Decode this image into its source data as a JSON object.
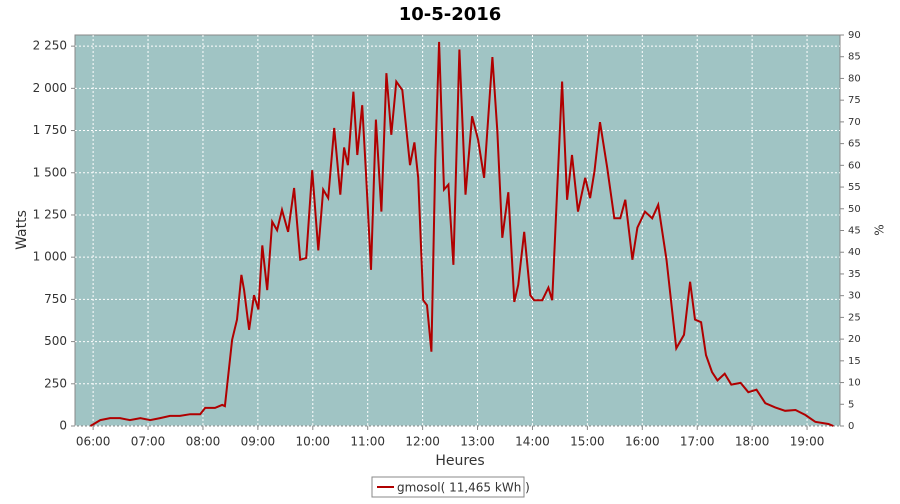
{
  "chart_data": {
    "type": "line",
    "title": "10-5-2016",
    "x_label": "Heures",
    "y_label": "Watts",
    "y2_label": "%",
    "x": [
      5.95,
      6.13,
      6.31,
      6.49,
      6.67,
      6.86,
      7.04,
      7.22,
      7.4,
      7.58,
      7.77,
      7.95,
      8.04,
      8.22,
      8.35,
      8.4,
      8.53,
      8.62,
      8.7,
      8.75,
      8.84,
      8.93,
      9.01,
      9.08,
      9.17,
      9.26,
      9.35,
      9.44,
      9.55,
      9.66,
      9.77,
      9.88,
      9.99,
      10.1,
      10.19,
      10.28,
      10.39,
      10.5,
      10.57,
      10.64,
      10.74,
      10.81,
      10.9,
      10.97,
      11.06,
      11.15,
      11.25,
      11.34,
      11.43,
      11.52,
      11.63,
      11.77,
      11.85,
      11.92,
      12.01,
      12.08,
      12.16,
      12.23,
      12.3,
      12.39,
      12.47,
      12.56,
      12.67,
      12.78,
      12.9,
      13.01,
      13.12,
      13.27,
      13.36,
      13.45,
      13.56,
      13.67,
      13.74,
      13.85,
      13.96,
      14.03,
      14.18,
      14.29,
      14.36,
      14.45,
      14.54,
      14.63,
      14.72,
      14.83,
      14.96,
      15.05,
      15.13,
      15.23,
      15.36,
      15.49,
      15.6,
      15.69,
      15.82,
      15.91,
      16.05,
      16.18,
      16.29,
      16.44,
      16.62,
      16.76,
      16.87,
      16.96,
      17.07,
      17.16,
      17.27,
      17.37,
      17.5,
      17.62,
      17.79,
      17.93,
      18.08,
      18.24,
      18.42,
      18.6,
      18.79,
      18.97,
      19.15,
      19.39,
      19.48
    ],
    "series": [
      {
        "name": "gmosol( 11,465 kWh )",
        "color": "#b00000",
        "values": [
          0,
          35,
          47,
          47,
          35,
          47,
          35,
          47,
          60,
          60,
          70,
          70,
          107,
          107,
          125,
          118,
          510,
          630,
          895,
          805,
          570,
          775,
          690,
          1070,
          805,
          1210,
          1160,
          1280,
          1150,
          1410,
          985,
          995,
          1515,
          1040,
          1400,
          1350,
          1765,
          1370,
          1650,
          1545,
          1980,
          1605,
          1900,
          1485,
          925,
          1815,
          1270,
          2090,
          1725,
          2040,
          1990,
          1545,
          1680,
          1470,
          745,
          715,
          440,
          1575,
          2275,
          1400,
          1430,
          955,
          2230,
          1370,
          1835,
          1695,
          1470,
          2185,
          1750,
          1115,
          1385,
          735,
          835,
          1150,
          775,
          745,
          745,
          820,
          745,
          1400,
          2040,
          1340,
          1605,
          1270,
          1470,
          1350,
          1510,
          1800,
          1530,
          1230,
          1230,
          1340,
          985,
          1175,
          1270,
          1230,
          1310,
          985,
          460,
          540,
          855,
          630,
          615,
          420,
          320,
          270,
          310,
          245,
          255,
          200,
          215,
          135,
          110,
          90,
          95,
          65,
          25,
          12,
          0
        ]
      }
    ],
    "xlim": [
      5.67,
      19.6
    ],
    "xticks": [
      {
        "value": 6,
        "label": "06:00"
      },
      {
        "value": 7,
        "label": "07:00"
      },
      {
        "value": 8,
        "label": "08:00"
      },
      {
        "value": 9,
        "label": "09:00"
      },
      {
        "value": 10,
        "label": "10:00"
      },
      {
        "value": 11,
        "label": "11:00"
      },
      {
        "value": 12,
        "label": "12:00"
      },
      {
        "value": 13,
        "label": "13:00"
      },
      {
        "value": 14,
        "label": "14:00"
      },
      {
        "value": 15,
        "label": "15:00"
      },
      {
        "value": 16,
        "label": "16:00"
      },
      {
        "value": 17,
        "label": "17:00"
      },
      {
        "value": 18,
        "label": "18:00"
      },
      {
        "value": 19,
        "label": "19:00"
      }
    ],
    "ylim": [
      0,
      2316
    ],
    "yticks": [
      0,
      250,
      500,
      750,
      {
        "value": 1000,
        "label": "1 000"
      },
      {
        "value": 1250,
        "label": "1 250"
      },
      {
        "value": 1500,
        "label": "1 500"
      },
      {
        "value": 1750,
        "label": "1 750"
      },
      {
        "value": 2000,
        "label": "2 000"
      },
      {
        "value": 2250,
        "label": "2 250"
      }
    ],
    "y2lim": [
      0,
      90
    ],
    "y2ticks": [
      0,
      5,
      10,
      15,
      20,
      25,
      30,
      35,
      40,
      45,
      50,
      55,
      60,
      65,
      70,
      75,
      80,
      85,
      90
    ],
    "grid": true,
    "plot_background": "#a0c4c4",
    "legend": "bottom"
  }
}
